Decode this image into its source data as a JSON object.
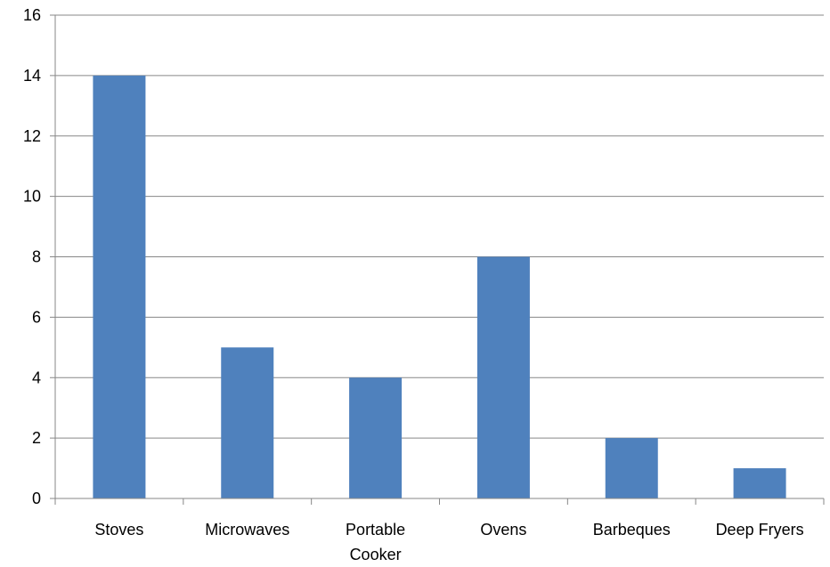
{
  "chart_data": {
    "type": "bar",
    "title": "",
    "xlabel": "",
    "ylabel": "",
    "categories": [
      "Stoves",
      "Microwaves",
      "Portable Cooker",
      "Ovens",
      "Barbeques",
      "Deep Fryers"
    ],
    "category_label_lines": [
      [
        "Stoves"
      ],
      [
        "Microwaves"
      ],
      [
        "Portable",
        "Cooker"
      ],
      [
        "Ovens"
      ],
      [
        "Barbeques"
      ],
      [
        "Deep Fryers"
      ]
    ],
    "values": [
      14,
      5,
      4,
      8,
      2,
      1
    ],
    "ylim": [
      0,
      16
    ],
    "yticks": [
      0,
      2,
      4,
      6,
      8,
      10,
      12,
      14,
      16
    ],
    "grid": true,
    "legend": "none",
    "colors": {
      "bar": "#4F81BD",
      "grid": "#878787",
      "axis": "#878787"
    }
  }
}
